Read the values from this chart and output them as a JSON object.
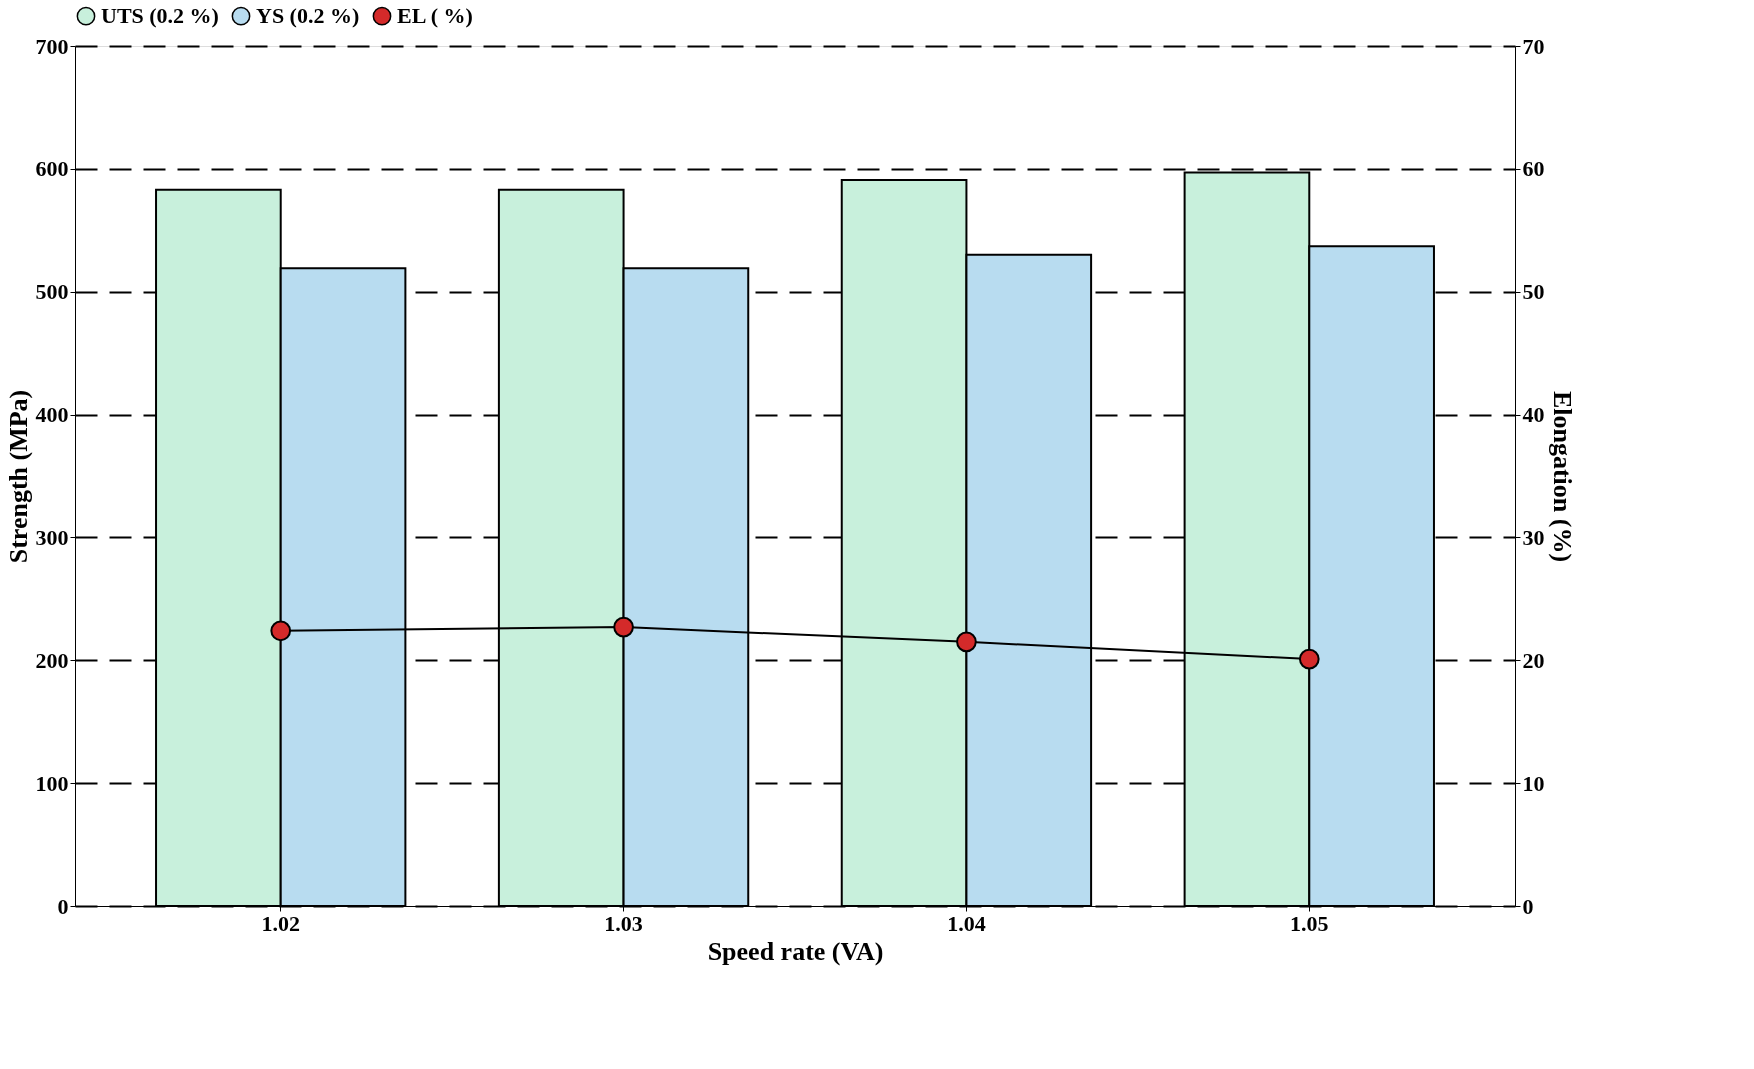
{
  "chart_data": {
    "type": "bar",
    "xlabel": "Speed rate (VA)",
    "ylabel": "Strength (MPa)",
    "y2label": "Elongation (%)",
    "categories": [
      "1.02",
      "1.03",
      "1.04",
      "1.05"
    ],
    "series": [
      {
        "name": "UTS (0.2 %)",
        "color": "#c8f0dc",
        "values": [
          583,
          583,
          591,
          597
        ]
      },
      {
        "name": "YS (0.2 %)",
        "color": "#b8dcf0",
        "values": [
          519,
          519,
          530,
          537
        ]
      },
      {
        "name": "EL ( %)",
        "color": "#d42a2a",
        "type": "line",
        "axis": "y2",
        "values": [
          22.4,
          22.7,
          21.5,
          20.1
        ]
      }
    ],
    "ylim": [
      0,
      700
    ],
    "yticks": [
      0,
      100,
      200,
      300,
      400,
      500,
      600,
      700
    ],
    "y2lim": [
      0,
      70
    ],
    "y2ticks": [
      0,
      10,
      20,
      30,
      40,
      50,
      60,
      70
    ],
    "grid": "y",
    "legend": "top",
    "marker": "circle",
    "line_style": "solid"
  }
}
